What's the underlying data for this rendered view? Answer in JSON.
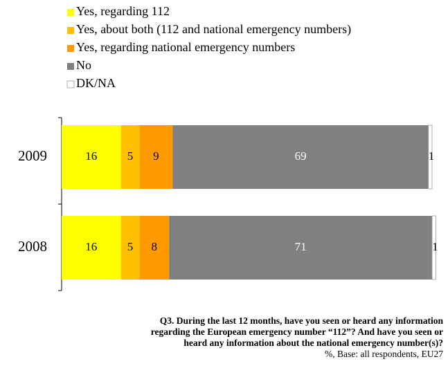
{
  "chart_data": {
    "type": "stacked-bar-horizontal",
    "categories": [
      "2009",
      "2008"
    ],
    "series": [
      {
        "name": "Yes, regarding 112",
        "color": "#ffff00",
        "values": [
          16,
          16
        ]
      },
      {
        "name": "Yes, about both (112 and national emergency numbers)",
        "color": "#ffc000",
        "values": [
          5,
          5
        ]
      },
      {
        "name": "Yes, regarding national emergency numbers",
        "color": "#ff9900",
        "values": [
          9,
          8
        ]
      },
      {
        "name": "No",
        "color": "#808080",
        "values": [
          69,
          71
        ]
      },
      {
        "name": "DK/NA",
        "color": "#ffffff",
        "values": [
          1,
          1
        ]
      }
    ],
    "xlim": [
      0,
      100
    ],
    "legend": "top-left",
    "footnote": [
      "Q3. During the last 12 months, have you seen or heard any information",
      "regarding the European emergency number “112”?  And have you seen or",
      "heard any information about the national emergency number(s)?"
    ],
    "base": "%, Base:  all respondents, EU27"
  }
}
